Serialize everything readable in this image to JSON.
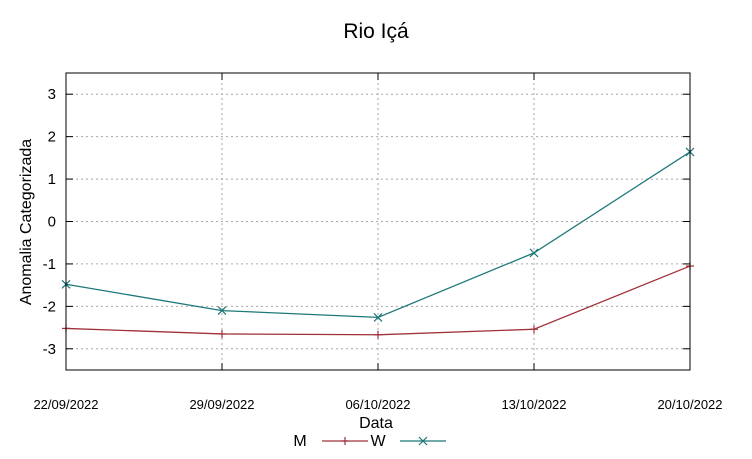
{
  "chart_data": {
    "type": "line",
    "title": "Rio Içá",
    "xlabel": "Data",
    "ylabel": "Anomalia Categorizada",
    "categories": [
      "22/09/2022",
      "29/09/2022",
      "06/10/2022",
      "13/10/2022",
      "20/10/2022"
    ],
    "yticks": [
      "3",
      "2",
      "1",
      "0",
      "-1",
      "-2",
      "-3"
    ],
    "ylim": [
      -3.5,
      3.5
    ],
    "grid": true,
    "legend_position": "bottom-center",
    "series": [
      {
        "name": "M",
        "marker": "plus",
        "color": "#a0303a",
        "values": [
          -2.52,
          -2.65,
          -2.67,
          -2.54,
          -1.05
        ]
      },
      {
        "name": "W",
        "marker": "cross",
        "color": "#1e7878",
        "values": [
          -1.48,
          -2.1,
          -2.26,
          -0.74,
          1.64
        ]
      }
    ]
  }
}
